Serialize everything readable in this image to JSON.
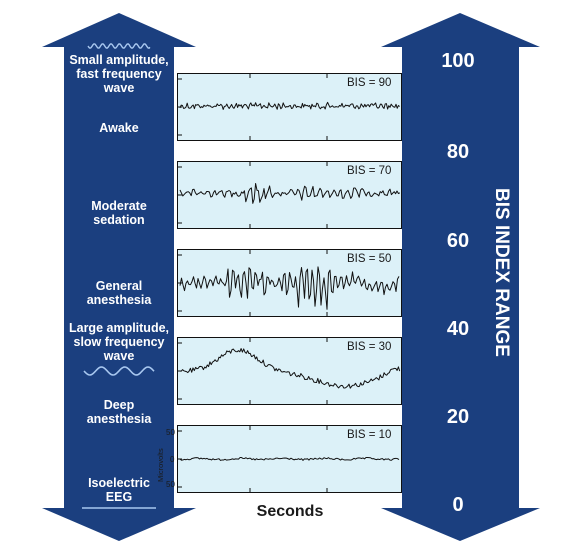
{
  "colors": {
    "arrow": "#1b3f7f",
    "panel": "#dcf1f8",
    "trace": "#111111",
    "text_on_arrow": "#ffffff"
  },
  "left_labels": {
    "small_amplitude": [
      "Small amplitude,",
      "fast frequency",
      "wave"
    ],
    "awake": "Awake",
    "moderate_sedation": [
      "Moderate",
      "sedation"
    ],
    "general_anesthesia": [
      "General",
      "anesthesia"
    ],
    "large_amplitude": [
      "Large amplitude,",
      "slow frequency",
      "wave"
    ],
    "deep_anesthesia": [
      "Deep",
      "anesthesia"
    ],
    "isoelectric": [
      "Isoelectric",
      "EEG"
    ]
  },
  "right_scale": {
    "title": "BIS INDEX RANGE",
    "ticks": [
      "100",
      "80",
      "60",
      "40",
      "20",
      "0"
    ]
  },
  "panels": [
    {
      "bis": "BIS = 90",
      "style": "fast-small"
    },
    {
      "bis": "BIS = 70",
      "style": "moderate"
    },
    {
      "bis": "BIS = 50",
      "style": "general"
    },
    {
      "bis": "BIS = 30",
      "style": "deep"
    },
    {
      "bis": "BIS = 10",
      "style": "isoelectric"
    }
  ],
  "bottom_panel_axis": {
    "label": "Microvolts",
    "ticks": [
      "50",
      "0",
      "50"
    ]
  },
  "x_axis_label": "Seconds",
  "icons": {
    "small_wave": "small-fast-wave-icon",
    "large_wave": "large-slow-wave-icon",
    "flat_line": "flat-line-icon"
  }
}
